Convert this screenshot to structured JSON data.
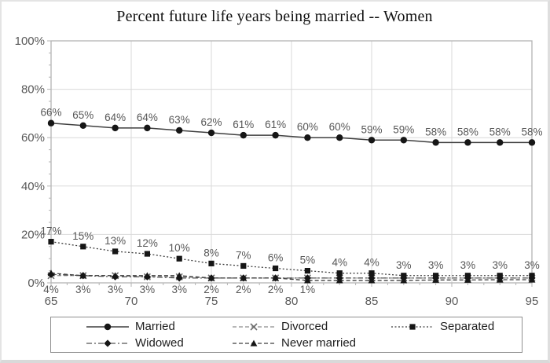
{
  "title": "Percent future life years being married -- Women",
  "colors": {
    "label_gray": "#595959",
    "grid": "#d9d9d9",
    "axis": "#b3b3b3",
    "series_dark": "#161616",
    "line_dark": "#3f3f3f",
    "line_gray": "#8c8c8c",
    "legend_border": "#8f8f8f"
  },
  "chart_data": {
    "type": "line",
    "title": "Percent future life years being married -- Women",
    "xlabel": "",
    "ylabel": "",
    "x": [
      65,
      67,
      69,
      71,
      73,
      75,
      77,
      79,
      81,
      83,
      85,
      87,
      89,
      91,
      93,
      95
    ],
    "x_axis": {
      "min": 65,
      "max": 95,
      "major_ticks": [
        65,
        70,
        75,
        80,
        85,
        90,
        95
      ],
      "minor_step": 1
    },
    "y_axis": {
      "min": 0,
      "max": 100,
      "major_ticks": [
        0,
        20,
        40,
        60,
        80,
        100
      ],
      "tick_labels": [
        "0%",
        "20%",
        "40%",
        "60%",
        "80%",
        "100%"
      ],
      "minor_step": 5
    },
    "grid": true,
    "legend_position": "bottom",
    "series": [
      {
        "name": "Married",
        "marker": "circle",
        "line": "solid",
        "values": [
          66,
          65,
          64,
          64,
          63,
          62,
          61,
          61,
          60,
          60,
          59,
          59,
          58,
          58,
          58,
          58
        ],
        "labels_shown": [
          "66%",
          "65%",
          "64%",
          "64%",
          "63%",
          "62%",
          "61%",
          "61%",
          "60%",
          "60%",
          "59%",
          "59%",
          "58%",
          "58%",
          "58%",
          "58%"
        ],
        "label_position": "above",
        "estimated": false
      },
      {
        "name": "Divorced",
        "marker": "x",
        "line": "dash",
        "values": [
          3,
          3,
          3,
          2.5,
          2.5,
          2,
          2,
          2,
          2,
          2,
          2,
          2,
          2,
          2,
          2,
          2
        ],
        "labels_shown": [],
        "label_position": "none",
        "estimated": true
      },
      {
        "name": "Separated",
        "marker": "square",
        "line": "dot",
        "values": [
          17,
          15,
          13,
          12,
          10,
          8,
          7,
          6,
          5,
          4,
          4,
          3,
          3,
          3,
          3,
          3
        ],
        "labels_shown": [
          "17%",
          "15%",
          "13%",
          "12%",
          "10%",
          "8%",
          "7%",
          "6%",
          "5%",
          "4%",
          "4%",
          "3%",
          "3%",
          "3%",
          "3%",
          "3%"
        ],
        "label_position": "above",
        "estimated": false
      },
      {
        "name": "Widowed",
        "marker": "diamond",
        "line": "dashdot",
        "values": [
          3.5,
          3,
          2.5,
          2.5,
          2,
          2,
          2,
          2,
          2,
          2,
          2,
          2,
          2,
          2,
          2,
          2
        ],
        "labels_shown": [],
        "label_position": "none",
        "estimated": true
      },
      {
        "name": "Never married",
        "marker": "triangle",
        "line": "dash",
        "values": [
          4,
          3,
          3,
          3,
          3,
          2,
          2,
          2,
          1,
          1,
          1,
          1,
          1.2,
          1.2,
          1.3,
          1.3
        ],
        "labels_shown": [
          "4%",
          "3%",
          "3%",
          "3%",
          "3%",
          "2%",
          "2%",
          "2%",
          "1%"
        ],
        "label_position": "below",
        "estimated": false
      }
    ]
  },
  "legend": {
    "rows": [
      [
        "Married",
        "Divorced",
        "Separated"
      ],
      [
        "Widowed",
        "Never married"
      ]
    ]
  }
}
